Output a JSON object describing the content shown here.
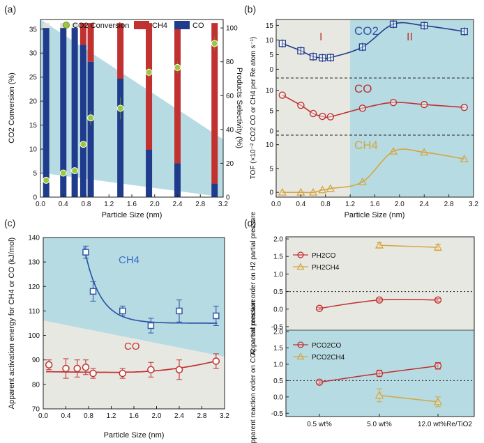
{
  "figure": {
    "colors": {
      "co2": "#1f3b8c",
      "co": "#c0312f",
      "ch4": "#d4a640",
      "bg_blue": "#b7dbe3",
      "bg_gray": "#e8e8e3",
      "bar_bg": "#e0e0db",
      "scatter_fill": "#9cc93c",
      "point_ch4_c": "#3a6fc7"
    }
  },
  "chart_data": [
    {
      "id": "a",
      "panel_label": "(a)",
      "type": "bar",
      "xlabel": "Particle Size (nm)",
      "ylabel": "CO2 Conversion (%)",
      "ylabel_right": "Products Selectivity (%)",
      "xlim": [
        0,
        3.2
      ],
      "ylim": [
        0,
        37
      ],
      "ylim_right": [
        0,
        105
      ],
      "xticks": [
        "0.0",
        "0.4",
        "0.8",
        "1.2",
        "1.6",
        "2.0",
        "2.4",
        "2.8",
        "3.2"
      ],
      "yticks": [
        "0",
        "5",
        "10",
        "15",
        "20",
        "25",
        "30",
        "35"
      ],
      "yticks_right": [
        "0",
        "20",
        "40",
        "60",
        "80",
        "100"
      ],
      "legend": [
        "CO2 Conversion",
        "CH4",
        "CO"
      ],
      "x": [
        0.1,
        0.4,
        0.6,
        0.75,
        0.88,
        1.4,
        1.9,
        2.4,
        3.05
      ],
      "co_selectivity": [
        100,
        100,
        100,
        90,
        80,
        70,
        28,
        20,
        8
      ],
      "ch4_selectivity": [
        0,
        0,
        0,
        10,
        20,
        30,
        72,
        80,
        92
      ],
      "co2_conversion": [
        3.5,
        5,
        5.5,
        11,
        16.5,
        18.5,
        26,
        27,
        32
      ],
      "co2_conversion_err": [
        0.4,
        0.4,
        0.4,
        0.5,
        1.5,
        2.3,
        1.2,
        1.2,
        1.5
      ]
    },
    {
      "id": "b",
      "panel_label": "(b)",
      "type": "line",
      "xlabel": "Particle Size (nm)",
      "ylabel": "TOF (×10⁻² CO2 CO or CH4 per Re atom s⁻¹)",
      "xlim": [
        0,
        3.2
      ],
      "xticks": [
        "0.0",
        "0.4",
        "0.8",
        "1.2",
        "1.6",
        "2.0",
        "2.4",
        "2.8",
        "3.2"
      ],
      "yticks": [
        "0",
        "5",
        "10",
        "15"
      ],
      "region_labels": [
        "I",
        "II"
      ],
      "region_boundary_x": 1.05,
      "x": [
        0.1,
        0.4,
        0.6,
        0.75,
        0.88,
        1.4,
        1.9,
        2.4,
        3.05
      ],
      "series": [
        {
          "name": "CO2",
          "label": "CO2",
          "ylim": [
            -3,
            17
          ],
          "values": [
            8.8,
            6.3,
            4.3,
            3.9,
            4.0,
            7.6,
            15.4,
            14.9,
            12.9
          ]
        },
        {
          "name": "CO",
          "label": "CO",
          "ylim": [
            -1,
            13
          ],
          "values": [
            8.8,
            6.3,
            4.3,
            3.6,
            3.5,
            5.6,
            7.0,
            6.5,
            5.8
          ]
        },
        {
          "name": "CH4",
          "label": "CH4",
          "ylim": [
            -1,
            12
          ],
          "values": [
            0,
            0,
            0,
            0.5,
            0.8,
            2.2,
            8.6,
            8.4,
            7.0
          ]
        }
      ]
    },
    {
      "id": "c",
      "panel_label": "(c)",
      "type": "scatter",
      "xlabel": "Particle Size (nm)",
      "ylabel": "Apparent activation energy for CH4 or CO (kJ/mol)",
      "xlim": [
        0,
        3.2
      ],
      "ylim": [
        70,
        140
      ],
      "xticks": [
        "0.0",
        "0.4",
        "0.8",
        "1.2",
        "1.6",
        "2.0",
        "2.4",
        "2.8",
        "3.2"
      ],
      "yticks": [
        "70",
        "80",
        "90",
        "100",
        "110",
        "120",
        "130",
        "140"
      ],
      "series": [
        {
          "name": "CH4",
          "label": "CH4",
          "x": [
            0.75,
            0.88,
            1.4,
            1.9,
            2.4,
            3.05
          ],
          "values": [
            134,
            118,
            110,
            104,
            110,
            108
          ],
          "err": [
            2.5,
            4,
            2,
            3,
            4.5,
            4
          ]
        },
        {
          "name": "CO",
          "label": "CO",
          "x": [
            0.1,
            0.4,
            0.6,
            0.75,
            0.88,
            1.4,
            1.9,
            2.4,
            3.05
          ],
          "values": [
            88,
            86.5,
            86.5,
            87,
            84.5,
            84.5,
            86,
            86,
            89.5
          ],
          "err": [
            2,
            4,
            3.5,
            3,
            2,
            2,
            3,
            4,
            3
          ]
        }
      ]
    },
    {
      "id": "d",
      "panel_label": "(d)",
      "type": "line",
      "categories": [
        "0.5 wt%",
        "5.0 wt%",
        "12.0 wt%Re/TiO2"
      ],
      "subplots": [
        {
          "ylabel": "Apparent reaction order on H2 partial pressure",
          "ylim": [
            -0.6,
            2.0
          ],
          "yticks": [
            "-0.5",
            "0.0",
            "0.5",
            "1.0",
            "1.5",
            "2.0"
          ],
          "dashed_y": 0.5,
          "series": [
            {
              "name": "PH2CO",
              "label": "PH2CO",
              "values": [
                0.02,
                0.26,
                0.26
              ],
              "err": [
                0.03,
                0.04,
                0.04
              ]
            },
            {
              "name": "PH2CH4",
              "label": "PH2CH4",
              "values": [
                null,
                1.82,
                1.76
              ],
              "err": [
                0,
                0.07,
                0.09
              ]
            }
          ]
        },
        {
          "ylabel": "Apparent reaction order on CO2 partial pressure",
          "ylim": [
            -0.6,
            2.0
          ],
          "yticks": [
            "-0.5",
            "0.0",
            "0.5",
            "1.0",
            "1.5",
            "2.0"
          ],
          "dashed_y": 0.5,
          "series": [
            {
              "name": "PCO2CO",
              "label": "PCO2CO",
              "values": [
                0.45,
                0.72,
                0.95
              ],
              "err": [
                0.05,
                0.1,
                0.1
              ]
            },
            {
              "name": "PCO2CH4",
              "label": "PCO2CH4",
              "values": [
                null,
                0.05,
                -0.15
              ],
              "err": [
                0,
                0.2,
                0.15
              ]
            }
          ]
        }
      ]
    }
  ]
}
